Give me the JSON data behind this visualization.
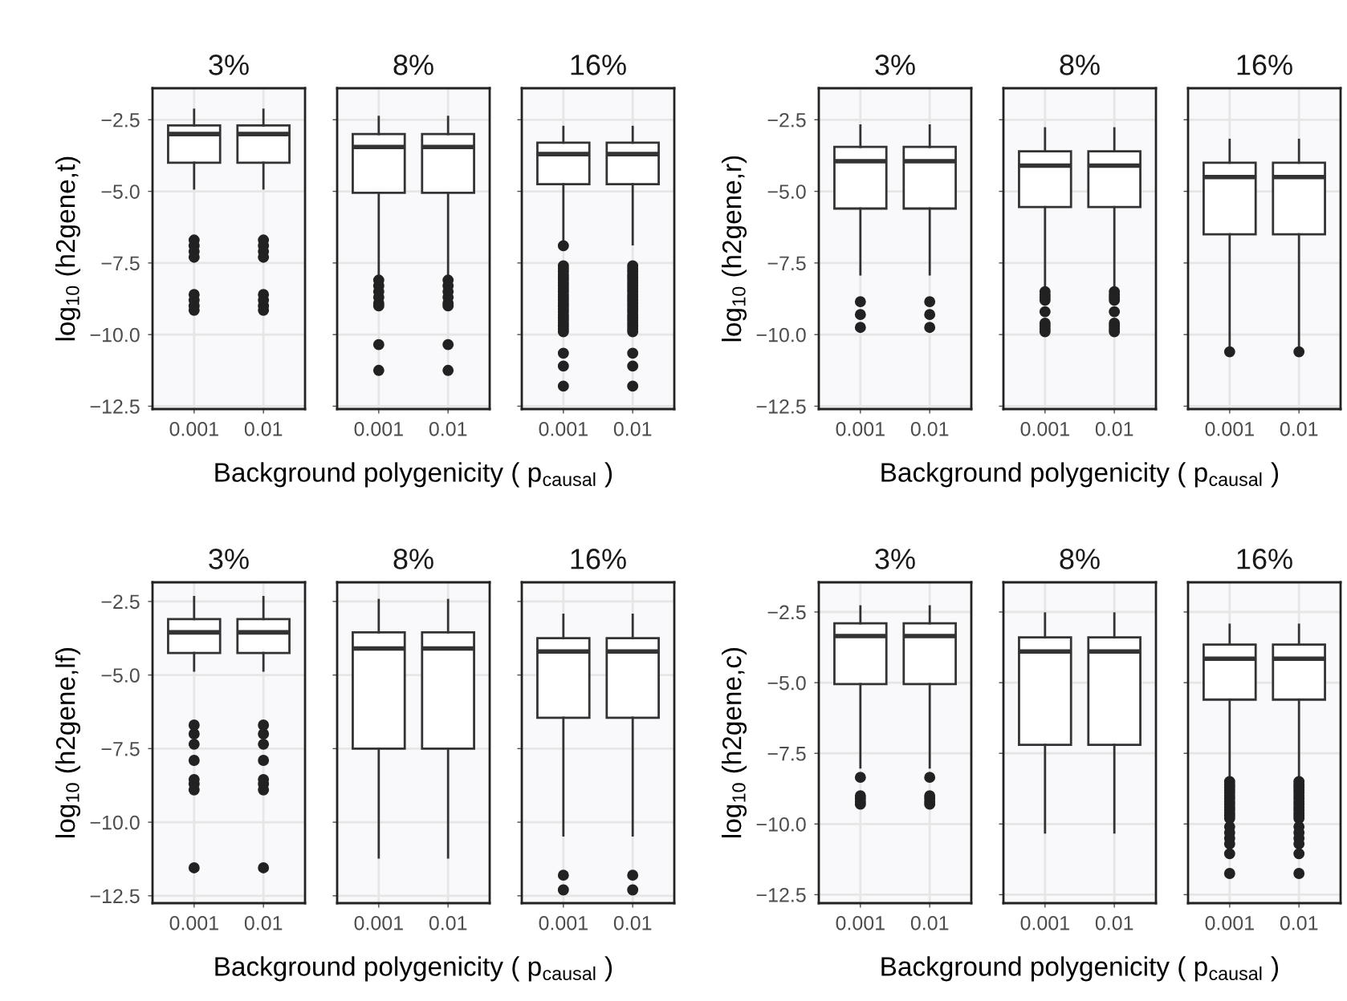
{
  "chart_data": [
    {
      "type": "box",
      "title": "3%",
      "ylabel": "log$_{10}$ (h2gene,t)",
      "categories": [
        "0.001",
        "0.01"
      ],
      "ylim": [
        -12.6,
        -1.4
      ],
      "yticks": [
        {
          "value": -2.5,
          "label": "−2.5"
        },
        {
          "value": -5.0,
          "label": "−5.0"
        },
        {
          "value": -7.5,
          "label": "−7.5"
        },
        {
          "value": -10.0,
          "label": "−10.0"
        },
        {
          "value": -12.5,
          "label": "−12.5"
        }
      ],
      "grid": true,
      "boxes": [
        {
          "low": -4.9,
          "q1": -4.0,
          "median": -3.0,
          "q3": -2.7,
          "high": -2.15,
          "outliers": [
            -6.7,
            -6.9,
            -7.1,
            -7.3,
            -8.6,
            -8.8,
            -9.0,
            -9.15
          ]
        },
        {
          "low": -4.9,
          "q1": -4.0,
          "median": -3.0,
          "q3": -2.7,
          "high": -2.15,
          "outliers": [
            -6.7,
            -6.9,
            -7.1,
            -7.3,
            -8.6,
            -8.8,
            -9.0,
            -9.15
          ]
        }
      ]
    },
    {
      "type": "box",
      "title": "8%",
      "xlabel": "Background polygenicity ( p$_{causal}$ )",
      "categories": [
        "0.001",
        "0.01"
      ],
      "ylim": [
        -12.6,
        -1.4
      ],
      "yticks": [
        -2.5,
        -5.0,
        -7.5,
        -10.0,
        -12.5
      ],
      "grid": true,
      "tick_labels": "x",
      "boxes": [
        {
          "low": -8.1,
          "q1": -5.05,
          "median": -3.45,
          "q3": -3.0,
          "high": -2.4,
          "outliers": [
            -8.1,
            -8.3,
            -8.5,
            -8.7,
            -8.9,
            -9.0,
            -10.35,
            -11.25
          ]
        },
        {
          "low": -8.1,
          "q1": -5.05,
          "median": -3.45,
          "q3": -3.0,
          "high": -2.4,
          "outliers": [
            -8.1,
            -8.3,
            -8.5,
            -8.7,
            -8.9,
            -9.0,
            -10.35,
            -11.25
          ]
        }
      ]
    },
    {
      "type": "box",
      "title": "16%",
      "categories": [
        "0.001",
        "0.01"
      ],
      "ylim": [
        -12.6,
        -1.4
      ],
      "yticks": [
        -2.5,
        -5.0,
        -7.5,
        -10.0,
        -12.5
      ],
      "grid": true,
      "tick_labels": "x",
      "boxes": [
        {
          "low": -6.85,
          "q1": -4.75,
          "median": -3.7,
          "q3": -3.3,
          "high": -2.75,
          "outliers": [
            -6.9,
            -7.6,
            -7.7,
            -7.8,
            -7.9,
            -8.0,
            -8.1,
            -8.2,
            -8.3,
            -8.4,
            -8.5,
            -8.6,
            -8.7,
            -8.8,
            -8.9,
            -9.0,
            -9.1,
            -9.2,
            -9.3,
            -9.4,
            -9.5,
            -9.6,
            -9.7,
            -9.8,
            -9.9,
            -10.65,
            -11.1,
            -11.8
          ]
        },
        {
          "low": -6.85,
          "q1": -4.75,
          "median": -3.7,
          "q3": -3.3,
          "high": -2.75,
          "outliers": [
            -7.6,
            -7.7,
            -7.8,
            -7.9,
            -8.0,
            -8.1,
            -8.2,
            -8.3,
            -8.4,
            -8.5,
            -8.6,
            -8.7,
            -8.8,
            -8.9,
            -9.0,
            -9.1,
            -9.2,
            -9.3,
            -9.4,
            -9.5,
            -9.6,
            -9.7,
            -9.8,
            -9.9,
            -10.65,
            -11.1,
            -11.8
          ]
        }
      ]
    },
    {
      "type": "box",
      "title": "3%",
      "ylabel": "log$_{10}$ (h2gene,r)",
      "categories": [
        "0.001",
        "0.01"
      ],
      "ylim": [
        -12.6,
        -1.4
      ],
      "yticks": [
        {
          "value": -2.5,
          "label": "−2.5"
        },
        {
          "value": -5.0,
          "label": "−5.0"
        },
        {
          "value": -7.5,
          "label": "−7.5"
        },
        {
          "value": -10.0,
          "label": "−10.0"
        },
        {
          "value": -12.5,
          "label": "−12.5"
        }
      ],
      "grid": true,
      "boxes": [
        {
          "low": -7.9,
          "q1": -5.6,
          "median": -3.95,
          "q3": -3.45,
          "high": -2.7,
          "outliers": [
            -8.85,
            -9.3,
            -9.75
          ]
        },
        {
          "low": -7.9,
          "q1": -5.6,
          "median": -3.95,
          "q3": -3.45,
          "high": -2.7,
          "outliers": [
            -8.85,
            -9.3,
            -9.75
          ]
        }
      ]
    },
    {
      "type": "box",
      "title": "8%",
      "xlabel": "Background polygenicity ( p$_{causal}$ )",
      "categories": [
        "0.001",
        "0.01"
      ],
      "ylim": [
        -12.6,
        -1.4
      ],
      "yticks": [
        -2.5,
        -5.0,
        -7.5,
        -10.0,
        -12.5
      ],
      "grid": true,
      "tick_labels": "x",
      "boxes": [
        {
          "low": -8.4,
          "q1": -5.55,
          "median": -4.1,
          "q3": -3.6,
          "high": -2.8,
          "outliers": [
            -8.5,
            -8.6,
            -8.7,
            -8.8,
            -9.2,
            -9.6,
            -9.7,
            -9.8,
            -9.9
          ]
        },
        {
          "low": -8.4,
          "q1": -5.55,
          "median": -4.1,
          "q3": -3.6,
          "high": -2.8,
          "outliers": [
            -8.5,
            -8.6,
            -8.7,
            -8.8,
            -9.2,
            -9.6,
            -9.7,
            -9.8,
            -9.9
          ]
        }
      ]
    },
    {
      "type": "box",
      "title": "16%",
      "categories": [
        "0.001",
        "0.01"
      ],
      "ylim": [
        -12.6,
        -1.4
      ],
      "yticks": [
        -2.5,
        -5.0,
        -7.5,
        -10.0,
        -12.5
      ],
      "grid": true,
      "tick_labels": "x",
      "boxes": [
        {
          "low": -10.4,
          "q1": -6.5,
          "median": -4.5,
          "q3": -4.0,
          "high": -3.2,
          "outliers": [
            -10.6
          ]
        },
        {
          "low": -10.4,
          "q1": -6.5,
          "median": -4.5,
          "q3": -4.0,
          "high": -3.2,
          "outliers": [
            -10.6
          ]
        }
      ]
    },
    {
      "type": "box",
      "title": "3%",
      "ylabel": "log$_{10}$ (h2gene,lf)",
      "categories": [
        "0.001",
        "0.01"
      ],
      "ylim": [
        -12.75,
        -1.85
      ],
      "yticks": [
        {
          "value": -2.5,
          "label": "−2.5"
        },
        {
          "value": -5.0,
          "label": "−5.0"
        },
        {
          "value": -7.5,
          "label": "−7.5"
        },
        {
          "value": -10.0,
          "label": "−10.0"
        },
        {
          "value": -12.5,
          "label": "−12.5"
        }
      ],
      "grid": true,
      "boxes": [
        {
          "low": -4.85,
          "q1": -4.25,
          "median": -3.55,
          "q3": -3.1,
          "high": -2.35,
          "outliers": [
            -6.7,
            -7.0,
            -7.35,
            -7.9,
            -8.55,
            -8.7,
            -8.9,
            -11.55
          ]
        },
        {
          "low": -4.85,
          "q1": -4.25,
          "median": -3.55,
          "q3": -3.1,
          "high": -2.35,
          "outliers": [
            -6.7,
            -7.0,
            -7.35,
            -7.9,
            -8.55,
            -8.7,
            -8.9,
            -11.55
          ]
        }
      ]
    },
    {
      "type": "box",
      "title": "8%",
      "xlabel": "Background polygenicity ( p$_{causal}$ )",
      "categories": [
        "0.001",
        "0.01"
      ],
      "ylim": [
        -12.75,
        -1.85
      ],
      "yticks": [
        -2.5,
        -5.0,
        -7.5,
        -10.0,
        -12.5
      ],
      "grid": true,
      "tick_labels": "x",
      "boxes": [
        {
          "low": -11.2,
          "q1": -7.5,
          "median": -4.1,
          "q3": -3.55,
          "high": -2.45
        },
        {
          "low": -11.2,
          "q1": -7.5,
          "median": -4.1,
          "q3": -3.55,
          "high": -2.45
        }
      ]
    },
    {
      "type": "box",
      "title": "16%",
      "categories": [
        "0.001",
        "0.01"
      ],
      "ylim": [
        -12.75,
        -1.85
      ],
      "yticks": [
        -2.5,
        -5.0,
        -7.5,
        -10.0,
        -12.5
      ],
      "grid": true,
      "tick_labels": "x",
      "boxes": [
        {
          "low": -10.45,
          "q1": -6.45,
          "median": -4.2,
          "q3": -3.75,
          "high": -2.95,
          "outliers": [
            -11.8,
            -12.3
          ]
        },
        {
          "low": -10.45,
          "q1": -6.45,
          "median": -4.2,
          "q3": -3.75,
          "high": -2.95,
          "outliers": [
            -11.8,
            -12.3
          ]
        }
      ]
    },
    {
      "type": "box",
      "title": "3%",
      "ylabel": "log$_{10}$ (h2gene,c)",
      "categories": [
        "0.001",
        "0.01"
      ],
      "ylim": [
        -12.8,
        -1.45
      ],
      "yticks": [
        {
          "value": -2.5,
          "label": "−2.5"
        },
        {
          "value": -5.0,
          "label": "−5.0"
        },
        {
          "value": -7.5,
          "label": "−7.5"
        },
        {
          "value": -10.0,
          "label": "−10.0"
        },
        {
          "value": -12.5,
          "label": "−12.5"
        }
      ],
      "grid": true,
      "boxes": [
        {
          "low": -8.0,
          "q1": -5.05,
          "median": -3.35,
          "q3": -2.9,
          "high": -2.3,
          "outliers": [
            -8.35,
            -9.0,
            -9.1,
            -9.2,
            -9.3
          ]
        },
        {
          "low": -8.0,
          "q1": -5.05,
          "median": -3.35,
          "q3": -2.9,
          "high": -2.3,
          "outliers": [
            -8.35,
            -9.0,
            -9.1,
            -9.2,
            -9.3
          ]
        }
      ]
    },
    {
      "type": "box",
      "title": "8%",
      "xlabel": "Background polygenicity ( p$_{causal}$ )",
      "categories": [
        "0.001",
        "0.01"
      ],
      "ylim": [
        -12.8,
        -1.45
      ],
      "yticks": [
        -2.5,
        -5.0,
        -7.5,
        -10.0,
        -12.5
      ],
      "grid": true,
      "tick_labels": "x",
      "boxes": [
        {
          "low": -10.3,
          "q1": -7.2,
          "median": -3.9,
          "q3": -3.4,
          "high": -2.55
        },
        {
          "low": -10.3,
          "q1": -7.2,
          "median": -3.9,
          "q3": -3.4,
          "high": -2.55
        }
      ]
    },
    {
      "type": "box",
      "title": "16%",
      "categories": [
        "0.001",
        "0.01"
      ],
      "ylim": [
        -12.8,
        -1.45
      ],
      "yticks": [
        -2.5,
        -5.0,
        -7.5,
        -10.0,
        -12.5
      ],
      "grid": true,
      "tick_labels": "x",
      "boxes": [
        {
          "low": -8.4,
          "q1": -5.6,
          "median": -4.15,
          "q3": -3.65,
          "high": -2.95,
          "outliers": [
            -8.5,
            -8.6,
            -8.7,
            -8.8,
            -8.9,
            -9.0,
            -9.1,
            -9.2,
            -9.3,
            -9.4,
            -9.5,
            -9.6,
            -9.7,
            -9.8,
            -10.1,
            -10.3,
            -10.5,
            -10.7,
            -11.05,
            -11.75
          ]
        },
        {
          "low": -8.4,
          "q1": -5.6,
          "median": -4.15,
          "q3": -3.65,
          "high": -2.95,
          "outliers": [
            -8.5,
            -8.6,
            -8.7,
            -8.8,
            -8.9,
            -9.0,
            -9.1,
            -9.2,
            -9.3,
            -9.4,
            -9.5,
            -9.6,
            -9.7,
            -9.8,
            -10.1,
            -10.3,
            -10.5,
            -10.7,
            -11.05,
            -11.75
          ]
        }
      ]
    }
  ]
}
